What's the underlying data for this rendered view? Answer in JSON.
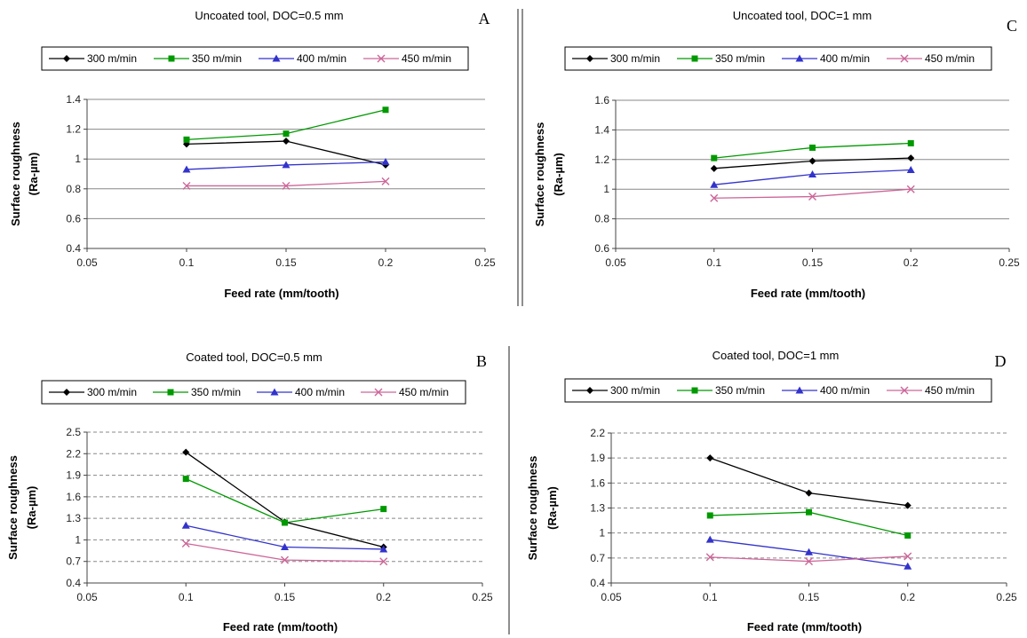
{
  "chart_data": [
    {
      "type": "line",
      "panel_letter": "A",
      "title": "Uncoated tool,  DOC=0.5 mm",
      "xlabel": "Feed rate (mm/tooth)",
      "ylabel_lines": [
        "Surface roughness",
        "(Ra-µm)"
      ],
      "xlim": [
        0.05,
        0.25
      ],
      "ylim": [
        0.4,
        1.4
      ],
      "xticks": [
        0.05,
        0.1,
        0.15,
        0.2,
        0.25
      ],
      "xtick_labels": [
        "0.05",
        "0.1",
        "0.15",
        "0.2",
        "0.25"
      ],
      "yticks": [
        0.4,
        0.6,
        0.8,
        1.0,
        1.2,
        1.4
      ],
      "ytick_labels": [
        "0.4",
        "0.6",
        "0.8",
        "1",
        "1.2",
        "1.4"
      ],
      "grid": "horizontal-solid",
      "legend_position": "top",
      "x": [
        0.1,
        0.15,
        0.2
      ],
      "series": [
        {
          "name": "300 m/min",
          "values": [
            1.1,
            1.12,
            0.96
          ],
          "color": "#000000",
          "marker": "diamond"
        },
        {
          "name": "350 m/min",
          "values": [
            1.13,
            1.17,
            1.33
          ],
          "color": "#009900",
          "marker": "square"
        },
        {
          "name": "400 m/min",
          "values": [
            0.93,
            0.96,
            0.98
          ],
          "color": "#3333cc",
          "marker": "triangle"
        },
        {
          "name": "450 m/min",
          "values": [
            0.82,
            0.82,
            0.85
          ],
          "color": "#cc6699",
          "marker": "x"
        }
      ]
    },
    {
      "type": "line",
      "panel_letter": "C",
      "title": "Uncoated tool,  DOC=1 mm",
      "xlabel": "Feed rate (mm/tooth)",
      "ylabel_lines": [
        "Surface roughness",
        "(Ra-µm)"
      ],
      "xlim": [
        0.05,
        0.25
      ],
      "ylim": [
        0.6,
        1.6
      ],
      "xticks": [
        0.05,
        0.1,
        0.15,
        0.2,
        0.25
      ],
      "xtick_labels": [
        "0.05",
        "0.1",
        "0.15",
        "0.2",
        "0.25"
      ],
      "yticks": [
        0.6,
        0.8,
        1.0,
        1.2,
        1.4,
        1.6
      ],
      "ytick_labels": [
        "0.6",
        "0.8",
        "1",
        "1.2",
        "1.4",
        "1.6"
      ],
      "grid": "horizontal-solid",
      "legend_position": "top",
      "x": [
        0.1,
        0.15,
        0.2
      ],
      "series": [
        {
          "name": "300 m/min",
          "values": [
            1.14,
            1.19,
            1.21
          ],
          "color": "#000000",
          "marker": "diamond"
        },
        {
          "name": "350 m/min",
          "values": [
            1.21,
            1.28,
            1.31
          ],
          "color": "#009900",
          "marker": "square"
        },
        {
          "name": "400 m/min",
          "values": [
            1.03,
            1.1,
            1.13
          ],
          "color": "#3333cc",
          "marker": "triangle"
        },
        {
          "name": "450 m/min",
          "values": [
            0.94,
            0.95,
            1.0
          ],
          "color": "#cc6699",
          "marker": "x"
        }
      ]
    },
    {
      "type": "line",
      "panel_letter": "B",
      "title": "Coated tool,  DOC=0.5 mm",
      "xlabel": "Feed rate (mm/tooth)",
      "ylabel_lines": [
        "Surface roughness",
        "(Ra-µm)"
      ],
      "xlim": [
        0.05,
        0.25
      ],
      "ylim": [
        0.4,
        2.5
      ],
      "xticks": [
        0.05,
        0.1,
        0.15,
        0.2,
        0.25
      ],
      "xtick_labels": [
        "0.05",
        "0.1",
        "0.15",
        "0.2",
        "0.25"
      ],
      "yticks": [
        0.4,
        0.7,
        1.0,
        1.3,
        1.6,
        1.9,
        2.2,
        2.5
      ],
      "ytick_labels": [
        "0.4",
        "0.7",
        "1",
        "1.3",
        "1.6",
        "1.9",
        "2.2",
        "2.5"
      ],
      "grid": "horizontal-dashed",
      "legend_position": "top",
      "x": [
        0.1,
        0.15,
        0.2
      ],
      "series": [
        {
          "name": "300 m/min",
          "values": [
            2.22,
            1.25,
            0.9
          ],
          "color": "#000000",
          "marker": "diamond"
        },
        {
          "name": "350 m/min",
          "values": [
            1.85,
            1.24,
            1.43
          ],
          "color": "#009900",
          "marker": "square"
        },
        {
          "name": "400 m/min",
          "values": [
            1.2,
            0.9,
            0.87
          ],
          "color": "#3333cc",
          "marker": "triangle"
        },
        {
          "name": "450 m/min",
          "values": [
            0.95,
            0.72,
            0.7
          ],
          "color": "#cc6699",
          "marker": "x"
        }
      ]
    },
    {
      "type": "line",
      "panel_letter": "D",
      "title": "Coated tool,  DOC=1 mm",
      "xlabel": "Feed rate (mm/tooth)",
      "ylabel_lines": [
        "Surface roughness",
        "(Ra-µm)"
      ],
      "xlim": [
        0.05,
        0.25
      ],
      "ylim": [
        0.4,
        2.2
      ],
      "xticks": [
        0.05,
        0.1,
        0.15,
        0.2,
        0.25
      ],
      "xtick_labels": [
        "0.05",
        "0.1",
        "0.15",
        "0.2",
        "0.25"
      ],
      "yticks": [
        0.4,
        0.7,
        1.0,
        1.3,
        1.6,
        1.9,
        2.2
      ],
      "ytick_labels": [
        "0.4",
        "0.7",
        "1",
        "1.3",
        "1.6",
        "1.9",
        "2.2"
      ],
      "grid": "horizontal-dashed",
      "legend_position": "top",
      "x": [
        0.1,
        0.15,
        0.2
      ],
      "series": [
        {
          "name": "300 m/min",
          "values": [
            1.9,
            1.48,
            1.33
          ],
          "color": "#000000",
          "marker": "diamond"
        },
        {
          "name": "350 m/min",
          "values": [
            1.21,
            1.25,
            0.97
          ],
          "color": "#009900",
          "marker": "square"
        },
        {
          "name": "400 m/min",
          "values": [
            0.92,
            0.77,
            0.6
          ],
          "color": "#3333cc",
          "marker": "triangle"
        },
        {
          "name": "450 m/min",
          "values": [
            0.71,
            0.66,
            0.72
          ],
          "color": "#cc6699",
          "marker": "x"
        }
      ]
    }
  ]
}
